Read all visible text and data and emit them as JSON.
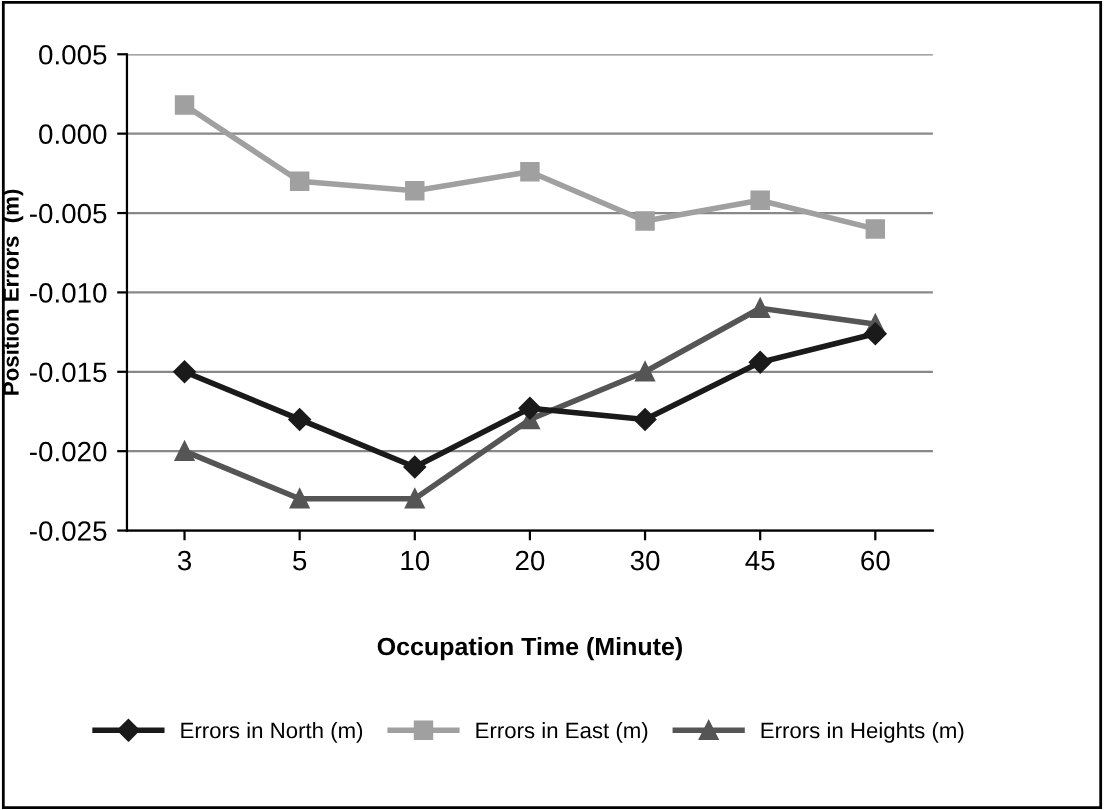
{
  "chart_data": {
    "type": "line",
    "xlabel": "Occupation Time (Minute)",
    "ylabel": "Position Errors  (m)",
    "categories": [
      "3",
      "5",
      "10",
      "20",
      "30",
      "45",
      "60"
    ],
    "series": [
      {
        "name": "Errors in North (m)",
        "color": "#1a1a1a",
        "marker": "diamond",
        "values": [
          -0.015,
          -0.018,
          -0.021,
          -0.0173,
          -0.018,
          -0.0144,
          -0.0126
        ]
      },
      {
        "name": "Errors in East (m)",
        "color": "#a0a0a0",
        "marker": "square",
        "values": [
          0.0018,
          -0.003,
          -0.0036,
          -0.0024,
          -0.0055,
          -0.0042,
          -0.006
        ]
      },
      {
        "name": "Errors in Heights (m)",
        "color": "#555555",
        "marker": "triangle",
        "values": [
          -0.02,
          -0.023,
          -0.023,
          -0.018,
          -0.015,
          -0.011,
          -0.012
        ]
      }
    ],
    "ylim": [
      -0.025,
      0.005
    ],
    "yticks": [
      {
        "value": 0.005,
        "label": "0.005"
      },
      {
        "value": 0.0,
        "label": "0.000"
      },
      {
        "value": -0.005,
        "label": "-0.005"
      },
      {
        "value": -0.01,
        "label": "-0.010"
      },
      {
        "value": -0.015,
        "label": "-0.015"
      },
      {
        "value": -0.02,
        "label": "-0.020"
      },
      {
        "value": -0.025,
        "label": "-0.025"
      }
    ],
    "grid": "y",
    "legend": "bottom",
    "line_style": "solid"
  }
}
